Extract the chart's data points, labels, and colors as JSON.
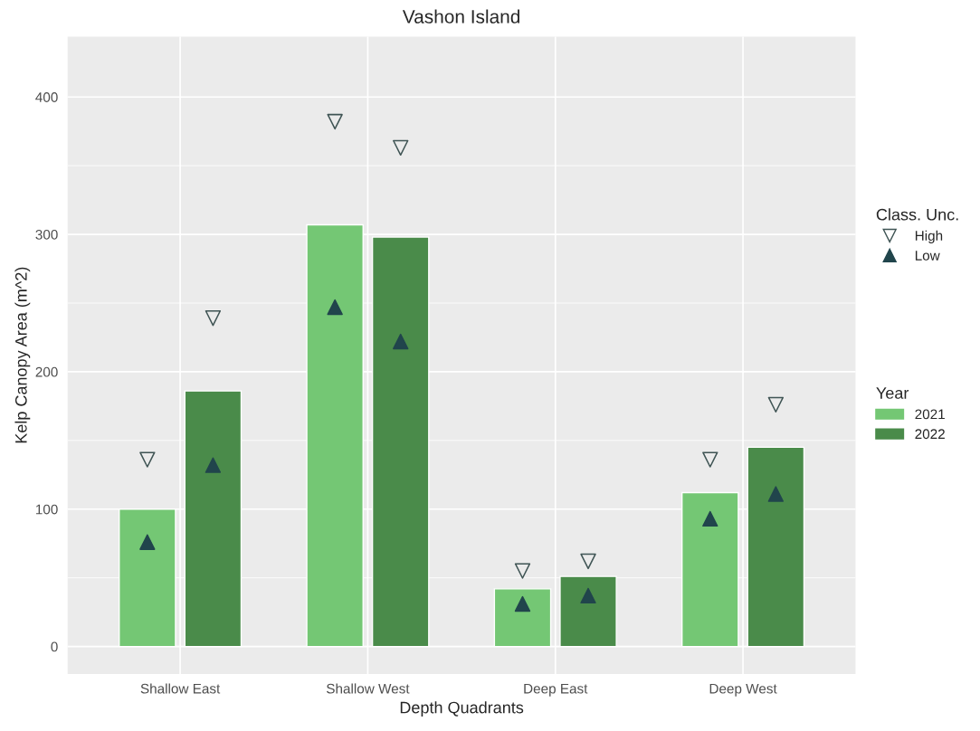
{
  "chart_data": {
    "type": "bar",
    "title": "Vashon Island",
    "xlabel": "Depth Quadrants",
    "ylabel": "Kelp Canopy Area (m^2)",
    "categories": [
      "Shallow East",
      "Shallow West",
      "Deep East",
      "Deep West"
    ],
    "series": [
      {
        "name": "2021",
        "color": "#74c774",
        "values": [
          100,
          307,
          42,
          112
        ]
      },
      {
        "name": "2022",
        "color": "#4a8b4a",
        "values": [
          186,
          298,
          51,
          145
        ]
      },
      {
        "name": "High",
        "type": "scatter",
        "marker": "triangle_down",
        "color": "#3f5454",
        "x": [
          "Shallow East",
          "Shallow West",
          "Deep East",
          "Deep West"
        ],
        "values": [
          136,
          382,
          55,
          136
        ]
      },
      {
        "type": "scatter",
        "marker": "triangle_down",
        "color": "#3f5454",
        "x": [
          "Shallow East",
          "Shallow West",
          "Deep East",
          "Deep West"
        ],
        "values": [
          239,
          363,
          62,
          176
        ]
      },
      {
        "name": "Low",
        "type": "scatter",
        "marker": "triangle",
        "color": "#21454c",
        "x": [
          "Shallow East",
          "Shallow West",
          "Deep East",
          "Deep West"
        ],
        "values": [
          76,
          247,
          31,
          93
        ]
      },
      {
        "type": "scatter",
        "marker": "triangle",
        "color": "#21454c",
        "x": [
          "Shallow East",
          "Shallow West",
          "Deep East",
          "Deep West"
        ],
        "values": [
          132,
          222,
          37,
          111
        ]
      }
    ],
    "legend_title": [
      "Class. Unc.",
      "Year"
    ],
    "ylim": [
      -20,
      444
    ],
    "yticks": [
      0,
      100,
      200,
      300,
      400
    ],
    "grid": true,
    "legend": "right"
  }
}
